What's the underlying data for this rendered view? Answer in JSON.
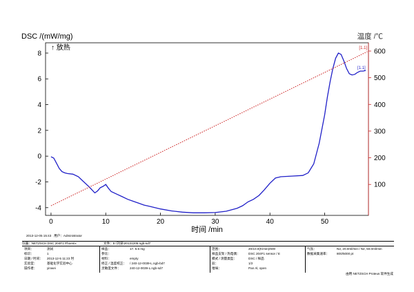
{
  "chart_data": {
    "type": "line",
    "y_left_label": "DSC /(mW/mg)",
    "y_right_label": "温度 /℃",
    "x_label": "时间 /min",
    "exo_label": "↑ 放热",
    "xlim": [
      -1,
      58
    ],
    "ylim_left": [
      -4.6,
      8.8
    ],
    "ylim_right": [
      -16,
      631
    ],
    "x_ticks": [
      0,
      10,
      20,
      30,
      40,
      50
    ],
    "y_left_ticks": [
      -4,
      -2,
      0,
      2,
      4,
      6,
      8
    ],
    "y_right_ticks": [
      100,
      200,
      300,
      400,
      500,
      600
    ],
    "series": [
      {
        "color": "#1f1fc8",
        "axis": "left",
        "x": [
          0,
          0.5,
          1,
          1.5,
          2,
          2.5,
          3,
          4,
          5,
          6,
          7,
          8,
          8.5,
          9,
          9.5,
          10,
          10.5,
          11,
          12,
          13,
          14,
          15,
          16,
          17,
          18,
          20,
          22,
          24,
          26,
          28,
          30,
          32,
          34,
          35,
          36,
          37,
          38,
          39,
          40,
          41,
          42,
          44,
          46,
          47,
          48,
          49,
          50,
          50.5,
          51,
          51.5,
          52,
          52.5,
          53,
          53.5,
          54,
          54.5,
          55,
          55.5,
          56,
          56.5,
          57,
          57.5
        ],
        "y": [
          -0.05,
          -0.15,
          -0.55,
          -0.95,
          -1.2,
          -1.3,
          -1.35,
          -1.4,
          -1.6,
          -2.0,
          -2.4,
          -2.85,
          -2.7,
          -2.45,
          -2.35,
          -2.2,
          -2.5,
          -2.75,
          -2.95,
          -3.15,
          -3.35,
          -3.5,
          -3.65,
          -3.8,
          -3.9,
          -4.1,
          -4.25,
          -4.35,
          -4.4,
          -4.4,
          -4.38,
          -4.28,
          -4.05,
          -3.85,
          -3.55,
          -3.35,
          -3.05,
          -2.6,
          -2.1,
          -1.7,
          -1.6,
          -1.55,
          -1.5,
          -1.3,
          -0.6,
          1.0,
          3.2,
          4.6,
          5.8,
          6.8,
          7.6,
          8.0,
          7.9,
          7.4,
          6.8,
          6.4,
          6.3,
          6.35,
          6.5,
          6.6,
          6.6,
          6.65
        ],
        "end_label": "[1.1]"
      },
      {
        "color": "#cc2222",
        "axis": "right",
        "dashed": true,
        "x": [
          0,
          57.8
        ],
        "y": [
          20,
          598
        ],
        "end_label": "[1.1]"
      }
    ],
    "grid": false
  },
  "footer": {
    "timestamp": "2013-12-05 15:43",
    "user": "用户：Administrator",
    "row0_instrument": "仪器：NETZSCH DSC 204F1 Phoenix",
    "row0_file": "文件：E:\\刘泉\\20131205.ngb-sd7",
    "cells": [
      [
        "项目：",
        "测试"
      ],
      [
        "标识：",
        "1"
      ],
      [
        "日期 / 时间：",
        "2013-12-5 11:23 时"
      ],
      [
        "实验室：",
        "基础化学实验中心"
      ],
      [
        "操作者：",
        "yinwei"
      ],
      [
        "样品：",
        "17. 5.5 mg"
      ],
      [
        "参比：",
        ""
      ],
      [
        "材料：",
        "empty"
      ],
      [
        "修正 / 温度校正：",
        "/ 240-12-0039-L.ngb-bd7"
      ],
      [
        "灵敏度文件：",
        "240-12-0039-L.ngb-sd7"
      ],
      [
        "范围：",
        "20/10.0(K/min)/600"
      ],
      [
        "样品支架 / 热电偶：",
        "DSC 204F1 sensor / E"
      ],
      [
        "模式 / 测量类型：",
        "DSC / 样品"
      ],
      [
        "段：",
        "1/2"
      ],
      [
        "坩埚：",
        "Pan Al, open"
      ],
      [
        "气氛：",
        "N2, 20.0ml/min / N2, 50.0ml/min"
      ],
      [
        "数据采集速率：",
        "800/5000 pt"
      ]
    ],
    "software": "由用 NETZSCH Proteus 软件生成"
  }
}
